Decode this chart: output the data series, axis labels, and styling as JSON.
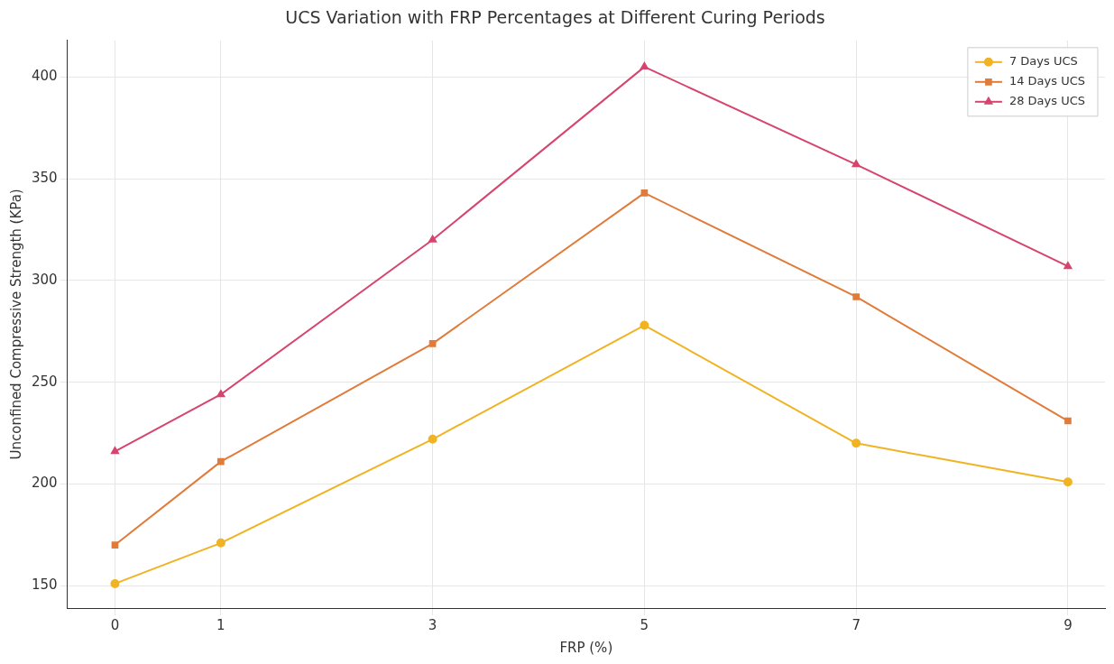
{
  "chart_data": {
    "type": "line",
    "title": "UCS Variation with FRP Percentages at Different Curing Periods",
    "xlabel": "FRP (%)",
    "ylabel": "Unconfined Compressive Strength (KPa)",
    "x": [
      0,
      1,
      3,
      5,
      7,
      9
    ],
    "series": [
      {
        "name": "7 Days UCS",
        "color": "#f0b323",
        "marker": "circle",
        "values": [
          151,
          171,
          222,
          278,
          220,
          201
        ]
      },
      {
        "name": "14 Days UCS",
        "color": "#e07b39",
        "marker": "square",
        "values": [
          170,
          211,
          269,
          343,
          292,
          231
        ]
      },
      {
        "name": "28 Days UCS",
        "color": "#d6456e",
        "marker": "triangle",
        "values": [
          216,
          244,
          320,
          405,
          357,
          307
        ]
      }
    ],
    "xlim": [
      -0.45,
      9.35
    ],
    "xticks": [
      0,
      1,
      3,
      5,
      7,
      9
    ],
    "ylim": [
      139,
      418
    ],
    "yticks": [
      150,
      200,
      250,
      300,
      350,
      400
    ],
    "grid": true,
    "legend": "top right",
    "line_style": "solid"
  }
}
